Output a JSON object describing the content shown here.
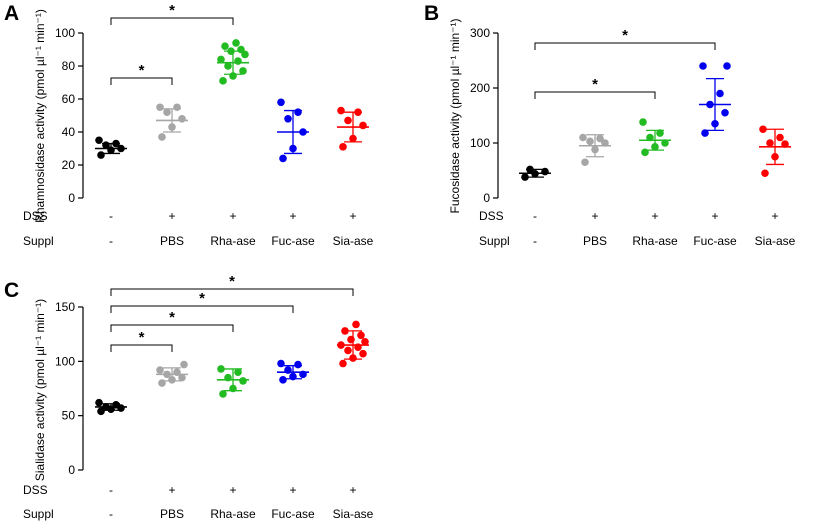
{
  "chart_data": [
    {
      "type": "scatter",
      "panel_letter": "A",
      "ylabel": "Rhamnosidase activity (pmol µl⁻¹ min⁻¹)",
      "ylim": [
        0,
        100
      ],
      "yticks": [
        "0",
        "20",
        "40",
        "60",
        "80",
        "100"
      ],
      "dss_label": "DSS",
      "suppl_label": "Suppl",
      "categories": [
        {
          "name": "-",
          "dss": "-",
          "color": "#000000",
          "mean": 30,
          "sd": 3,
          "points": [
            26,
            29,
            30,
            32,
            33,
            35
          ]
        },
        {
          "name": "PBS",
          "dss": "+",
          "color": "#a6a6a6",
          "mean": 47,
          "sd": 7,
          "points": [
            37,
            43,
            48,
            52,
            55,
            55
          ]
        },
        {
          "name": "Rha-ase",
          "dss": "+",
          "color": "#22bb22",
          "mean": 82,
          "sd": 7,
          "points": [
            71,
            74,
            77,
            80,
            83,
            84,
            87,
            89,
            90,
            92,
            94
          ]
        },
        {
          "name": "Fuc-ase",
          "dss": "+",
          "color": "#0000ee",
          "mean": 40,
          "sd": 13,
          "points": [
            24,
            30,
            40,
            48,
            52,
            58
          ]
        },
        {
          "name": "Sia-ase",
          "dss": "+",
          "color": "#ff0000",
          "mean": 43,
          "sd": 9,
          "points": [
            31,
            36,
            44,
            47,
            52,
            53
          ]
        }
      ],
      "significance": [
        {
          "from": 0,
          "to": 1,
          "label": "*"
        },
        {
          "from": 0,
          "to": 2,
          "label": "*"
        }
      ]
    },
    {
      "type": "scatter",
      "panel_letter": "B",
      "ylabel": "Fucosidase activity (pmol µl⁻¹ min⁻¹)",
      "ylim": [
        0,
        300
      ],
      "yticks": [
        "0",
        "100",
        "200",
        "300"
      ],
      "dss_label": "DSS",
      "suppl_label": "Suppl",
      "categories": [
        {
          "name": "-",
          "dss": "-",
          "color": "#000000",
          "mean": 45,
          "sd": 7,
          "points": [
            38,
            44,
            48,
            52
          ]
        },
        {
          "name": "PBS",
          "dss": "+",
          "color": "#a6a6a6",
          "mean": 95,
          "sd": 20,
          "points": [
            65,
            88,
            100,
            103,
            108,
            110
          ]
        },
        {
          "name": "Rha-ase",
          "dss": "+",
          "color": "#22bb22",
          "mean": 105,
          "sd": 18,
          "points": [
            83,
            93,
            100,
            110,
            118,
            138
          ]
        },
        {
          "name": "Fuc-ase",
          "dss": "+",
          "color": "#0000ee",
          "mean": 170,
          "sd": 47,
          "points": [
            118,
            135,
            155,
            170,
            190,
            240,
            240
          ]
        },
        {
          "name": "Sia-ase",
          "dss": "+",
          "color": "#ff0000",
          "mean": 93,
          "sd": 32,
          "points": [
            45,
            75,
            98,
            100,
            110,
            125
          ]
        }
      ],
      "significance": [
        {
          "from": 0,
          "to": 2,
          "label": "*"
        },
        {
          "from": 0,
          "to": 3,
          "label": "*"
        }
      ]
    },
    {
      "type": "scatter",
      "panel_letter": "C",
      "ylabel": "Sialidase activity (pmol µl⁻¹ min⁻¹)",
      "ylim": [
        0,
        150
      ],
      "yticks": [
        "0",
        "50",
        "100",
        "150"
      ],
      "dss_label": "DSS",
      "suppl_label": "Suppl",
      "categories": [
        {
          "name": "-",
          "dss": "-",
          "color": "#000000",
          "mean": 58,
          "sd": 3,
          "points": [
            54,
            56,
            57,
            58,
            60,
            62
          ]
        },
        {
          "name": "PBS",
          "dss": "+",
          "color": "#a6a6a6",
          "mean": 88,
          "sd": 6,
          "points": [
            80,
            83,
            85,
            88,
            90,
            92,
            97
          ]
        },
        {
          "name": "Rha-ase",
          "dss": "+",
          "color": "#22bb22",
          "mean": 83,
          "sd": 10,
          "points": [
            70,
            75,
            82,
            85,
            90,
            93
          ]
        },
        {
          "name": "Fuc-ase",
          "dss": "+",
          "color": "#0000ee",
          "mean": 90,
          "sd": 6,
          "points": [
            83,
            86,
            88,
            92,
            97,
            98
          ]
        },
        {
          "name": "Sia-ase",
          "dss": "+",
          "color": "#ff0000",
          "mean": 115,
          "sd": 13,
          "points": [
            98,
            103,
            107,
            110,
            113,
            115,
            118,
            120,
            124,
            128,
            134
          ]
        }
      ],
      "significance": [
        {
          "from": 0,
          "to": 1,
          "label": "*"
        },
        {
          "from": 0,
          "to": 2,
          "label": "*"
        },
        {
          "from": 0,
          "to": 3,
          "label": "*"
        },
        {
          "from": 0,
          "to": 4,
          "label": "*"
        }
      ]
    }
  ]
}
